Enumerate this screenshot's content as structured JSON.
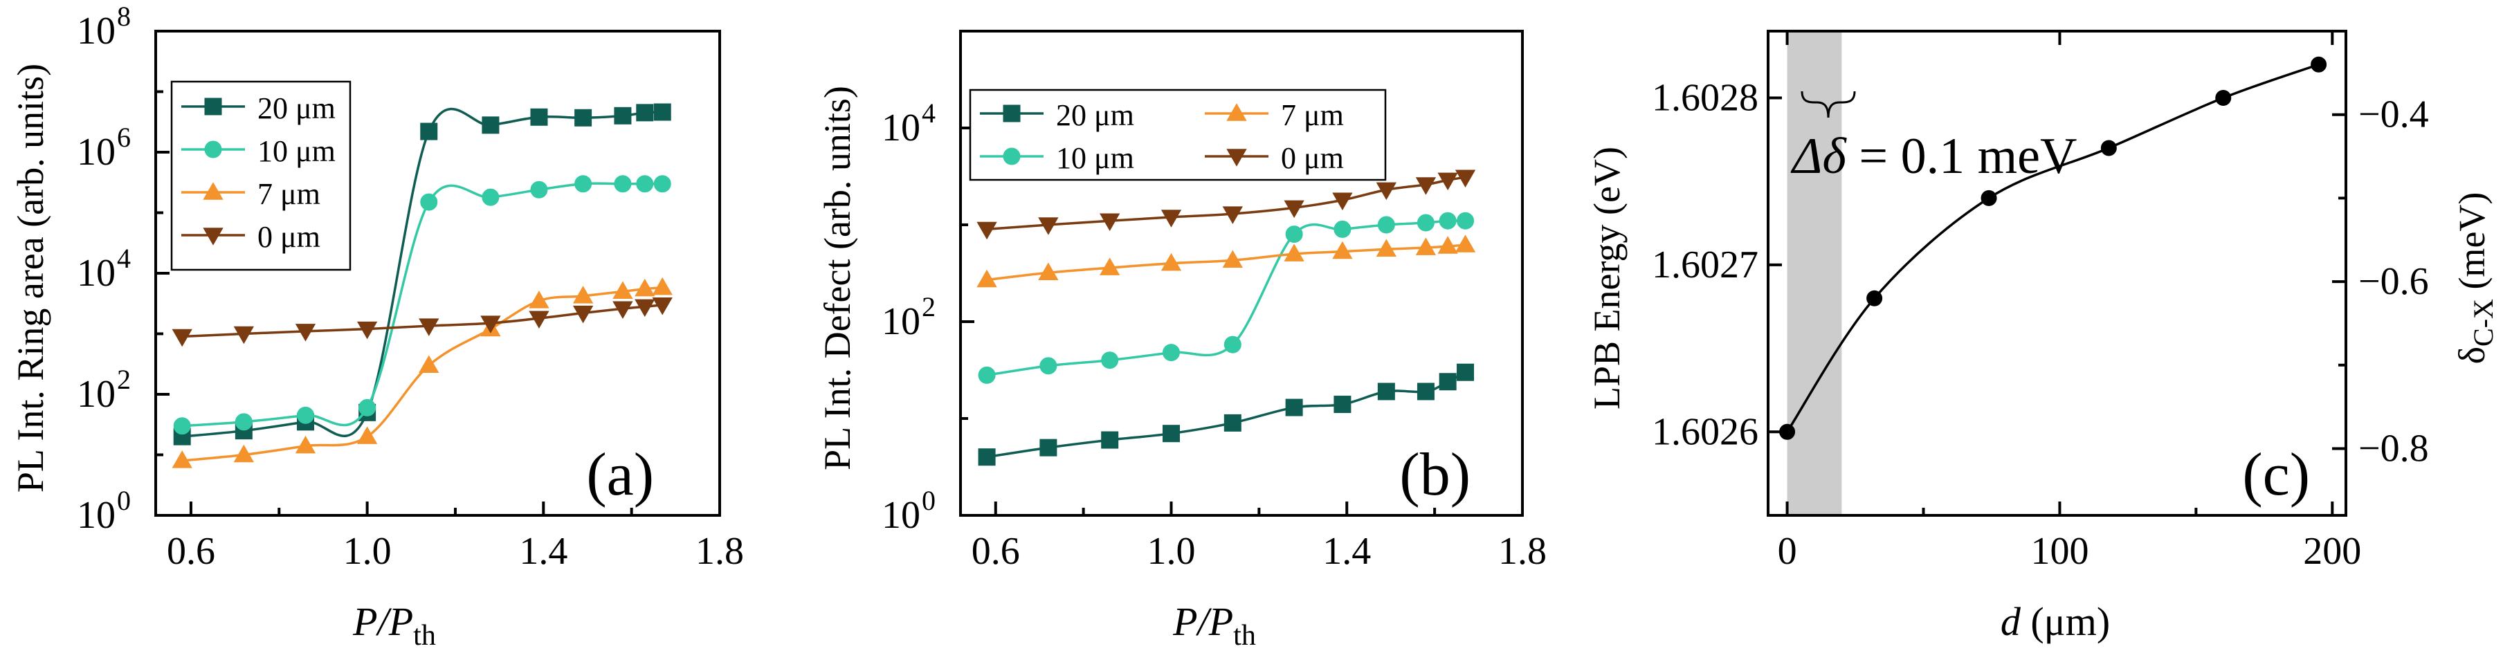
{
  "chart_data": [
    {
      "type": "line",
      "panel_label": "(a)",
      "xlabel": "P/Pth",
      "xlabel_main": "P/P",
      "xlabel_sub": "th",
      "ylabel": "PL Int. Ring area (arb. units)",
      "yscale": "log",
      "xlim": [
        0.52,
        1.8
      ],
      "ylim": [
        1,
        100000000
      ],
      "xticks": [
        0.6,
        1.0,
        1.4,
        1.8
      ],
      "xtick_labels": [
        "0.6",
        "1.0",
        "1.4",
        "1.8"
      ],
      "yticks": [
        1,
        100,
        10000,
        1000000,
        100000000
      ],
      "ytick_labels": [
        {
          "base": "10",
          "exp": "0"
        },
        {
          "base": "10",
          "exp": "2"
        },
        {
          "base": "10",
          "exp": "4"
        },
        {
          "base": "10",
          "exp": "6"
        },
        {
          "base": "10",
          "exp": "8"
        }
      ],
      "series": [
        {
          "name": "20 μm",
          "color": "#0e5c52",
          "marker": "square",
          "x": [
            0.58,
            0.72,
            0.86,
            1.0,
            1.14,
            1.28,
            1.39,
            1.49,
            1.58,
            1.63,
            1.67
          ],
          "y": [
            20,
            25,
            35,
            50,
            2200000,
            2800000,
            3800000,
            3700000,
            4000000,
            4500000,
            4600000
          ]
        },
        {
          "name": "10 μm",
          "color": "#33c9a4",
          "marker": "circle",
          "x": [
            0.58,
            0.72,
            0.86,
            1.0,
            1.14,
            1.28,
            1.39,
            1.49,
            1.58,
            1.63,
            1.67
          ],
          "y": [
            30,
            35,
            45,
            60,
            150000,
            180000,
            240000,
            300000,
            300000,
            300000,
            300000
          ]
        },
        {
          "name": "7 μm",
          "color": "#f4922b",
          "marker": "triangle-up",
          "x": [
            0.58,
            0.72,
            0.86,
            1.0,
            1.14,
            1.28,
            1.39,
            1.49,
            1.58,
            1.63,
            1.67
          ],
          "y": [
            8,
            10,
            14,
            20,
            300,
            1200,
            3500,
            4200,
            5000,
            5500,
            5800
          ]
        },
        {
          "name": "0 μm",
          "color": "#7b3b10",
          "marker": "triangle-down",
          "x": [
            0.58,
            0.72,
            0.86,
            1.0,
            1.14,
            1.28,
            1.39,
            1.49,
            1.58,
            1.63,
            1.67
          ],
          "y": [
            900,
            1000,
            1100,
            1200,
            1350,
            1500,
            1800,
            2200,
            2600,
            2800,
            3000
          ]
        }
      ]
    },
    {
      "type": "line",
      "panel_label": "(b)",
      "xlabel": "P/Pth",
      "xlabel_main": "P/P",
      "xlabel_sub": "th",
      "ylabel": "PL Int. Defect (arb. units)",
      "yscale": "log",
      "xlim": [
        0.52,
        1.8
      ],
      "ylim": [
        1,
        100000
      ],
      "xticks": [
        0.6,
        1.0,
        1.4,
        1.8
      ],
      "xtick_labels": [
        "0.6",
        "1.0",
        "1.4",
        "1.8"
      ],
      "yticks": [
        1,
        100,
        10000
      ],
      "ytick_labels": [
        {
          "base": "10",
          "exp": "0"
        },
        {
          "base": "10",
          "exp": "2"
        },
        {
          "base": "10",
          "exp": "4"
        }
      ],
      "series": [
        {
          "name": "20 μm",
          "color": "#0e5c52",
          "marker": "square",
          "x": [
            0.58,
            0.72,
            0.86,
            1.0,
            1.14,
            1.28,
            1.39,
            1.49,
            1.58,
            1.63,
            1.67
          ],
          "y": [
            4,
            5,
            6,
            7,
            9,
            13,
            14,
            19,
            19,
            24,
            30
          ]
        },
        {
          "name": "10 μm",
          "color": "#33c9a4",
          "marker": "circle",
          "x": [
            0.58,
            0.72,
            0.86,
            1.0,
            1.14,
            1.28,
            1.39,
            1.49,
            1.58,
            1.63,
            1.67
          ],
          "y": [
            28,
            35,
            40,
            48,
            58,
            800,
            900,
            1000,
            1050,
            1100,
            1100
          ]
        },
        {
          "name": "7 μm",
          "color": "#f4922b",
          "marker": "triangle-up",
          "x": [
            0.58,
            0.72,
            0.86,
            1.0,
            1.14,
            1.28,
            1.39,
            1.49,
            1.58,
            1.63,
            1.67
          ],
          "y": [
            270,
            320,
            360,
            400,
            430,
            500,
            530,
            560,
            580,
            600,
            620
          ]
        },
        {
          "name": "0 μm",
          "color": "#7b3b10",
          "marker": "triangle-down",
          "x": [
            0.58,
            0.72,
            0.86,
            1.0,
            1.14,
            1.28,
            1.39,
            1.49,
            1.58,
            1.63,
            1.67
          ],
          "y": [
            900,
            1000,
            1100,
            1200,
            1300,
            1500,
            1800,
            2300,
            2600,
            2900,
            3100
          ]
        }
      ]
    },
    {
      "type": "line",
      "panel_label": "(c)",
      "xlabel": "d (μm)",
      "xlabel_main": "d",
      "xlabel_unit": " (μm)",
      "ylabel": "LPB Energy (eV)",
      "y2label": "δC-X (meV)",
      "y2label_main": "δ",
      "y2label_sub": "C-X",
      "y2label_unit": " (meV)",
      "xlim": [
        -7,
        205
      ],
      "ylim": [
        1.60255,
        1.60284
      ],
      "y2lim": [
        -0.88,
        -0.3
      ],
      "xticks": [
        0,
        100,
        200
      ],
      "xtick_labels": [
        "0",
        "100",
        "200"
      ],
      "yticks": [
        1.6026,
        1.6027,
        1.6028
      ],
      "ytick_labels": [
        "1.6026",
        "1.6027",
        "1.6028"
      ],
      "y2ticks": [
        -0.8,
        -0.6,
        -0.4
      ],
      "y2tick_labels": [
        "−0.8",
        "−0.6",
        "−0.4"
      ],
      "shaded_band_x": [
        0,
        20
      ],
      "annotation": "Δδ = 0.1 meV",
      "annotation_delta": "Δδ",
      "annotation_rest": " = 0.1 meV",
      "series": [
        {
          "name": "LPB Energy",
          "color": "#000000",
          "marker": "circle",
          "x": [
            0,
            32,
            74,
            118,
            160,
            195
          ],
          "y": [
            1.6026,
            1.60268,
            1.60274,
            1.60277,
            1.6028,
            1.60282
          ]
        }
      ]
    }
  ]
}
